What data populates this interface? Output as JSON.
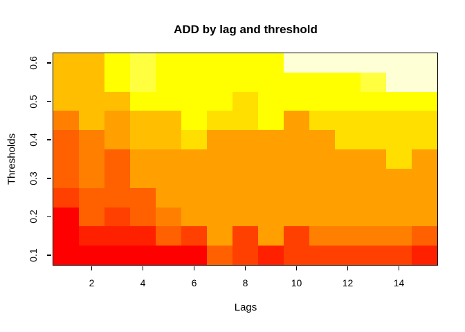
{
  "title": "ADD by lag and threshold",
  "chart_data": {
    "type": "heatmap",
    "title": "ADD by lag and threshold",
    "xlabel": "Lags",
    "ylabel": "Thresholds",
    "x_values": [
      1,
      2,
      3,
      4,
      5,
      6,
      7,
      8,
      9,
      10,
      11,
      12,
      13,
      14,
      15
    ],
    "x_range": [
      0.5,
      15.5
    ],
    "x_tick_values": [
      2,
      4,
      6,
      8,
      10,
      12,
      14
    ],
    "x_tick_labels": [
      "2",
      "4",
      "6",
      "8",
      "10",
      "12",
      "14"
    ],
    "y_range": [
      0.075,
      0.625
    ],
    "y_tick_values": [
      0.1,
      0.2,
      0.3,
      0.4,
      0.5,
      0.6
    ],
    "y_tick_labels": [
      "0.1",
      "0.2",
      "0.3",
      "0.4",
      "0.5",
      "0.6"
    ],
    "rows_thresholds_top_to_bottom": [
      0.6,
      0.55,
      0.5,
      0.45,
      0.4,
      0.35,
      0.3,
      0.25,
      0.2,
      0.15,
      0.1
    ],
    "palette_note": "heat.colors-style ramp, index 0 = lowest value (red) to index 11 = highest value (near-white)",
    "palette": [
      "#FF0000",
      "#FF2000",
      "#FF4000",
      "#FF6000",
      "#FF8000",
      "#FF9F00",
      "#FFBF00",
      "#FFDF00",
      "#FFFF00",
      "#FFFF40",
      "#FFFF80",
      "#FFFFD5"
    ],
    "grid_palette_indices": [
      [
        6,
        6,
        8,
        9,
        8,
        8,
        8,
        8,
        8,
        11,
        11,
        11,
        11,
        11,
        11
      ],
      [
        6,
        6,
        8,
        9,
        8,
        8,
        8,
        8,
        8,
        8,
        8,
        8,
        9,
        11,
        11
      ],
      [
        6,
        6,
        6,
        8,
        8,
        8,
        8,
        7,
        8,
        8,
        8,
        8,
        8,
        8,
        8
      ],
      [
        4,
        6,
        5,
        6,
        6,
        8,
        7,
        7,
        8,
        5,
        7,
        7,
        7,
        7,
        7
      ],
      [
        3,
        4,
        5,
        6,
        6,
        7,
        5,
        5,
        5,
        5,
        5,
        7,
        7,
        7,
        7
      ],
      [
        3,
        4,
        3,
        5,
        5,
        5,
        5,
        5,
        5,
        5,
        5,
        5,
        5,
        7,
        5
      ],
      [
        3,
        4,
        3,
        5,
        5,
        5,
        5,
        5,
        5,
        5,
        5,
        5,
        5,
        5,
        5
      ],
      [
        2,
        3,
        3,
        3,
        5,
        5,
        5,
        5,
        5,
        5,
        5,
        5,
        5,
        5,
        5
      ],
      [
        0,
        3,
        2,
        3,
        4,
        5,
        5,
        5,
        5,
        5,
        5,
        5,
        5,
        5,
        5
      ],
      [
        0,
        1,
        1,
        1,
        3,
        2,
        5,
        2,
        5,
        2,
        4,
        4,
        4,
        4,
        3
      ],
      [
        0,
        0,
        0,
        0,
        0,
        0,
        3,
        2,
        1,
        2,
        2,
        2,
        2,
        2,
        1
      ]
    ],
    "legend": "none",
    "grid_lines": "off",
    "axis_color": "#000000",
    "background_color": "#FFFFFF"
  }
}
